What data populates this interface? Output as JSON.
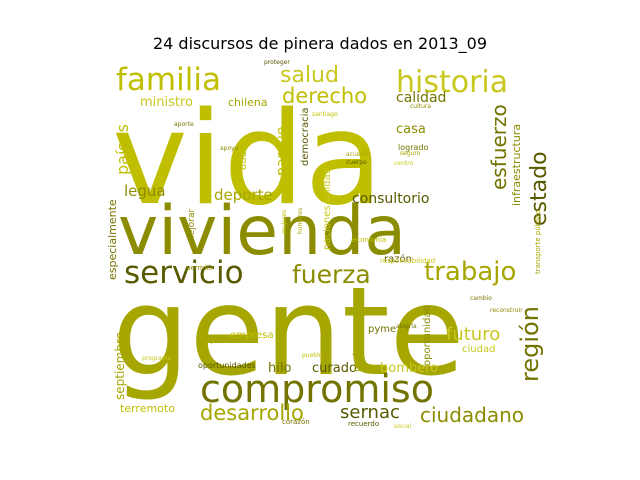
{
  "chart_data": {
    "type": "wordcloud",
    "title": "24 discursos de pinera dados en 2013_09",
    "colors": {
      "background": "#ffffff",
      "palette": [
        "#bfbf00",
        "#a6a600",
        "#8c8c00",
        "#737300",
        "#595900",
        "#c8c81e"
      ]
    },
    "words": [
      {
        "text": "vida",
        "weight": 100
      },
      {
        "text": "gente",
        "weight": 98
      },
      {
        "text": "vivienda",
        "weight": 62
      },
      {
        "text": "compromiso",
        "weight": 44
      },
      {
        "text": "servicio",
        "weight": 30
      },
      {
        "text": "historia",
        "weight": 26
      },
      {
        "text": "familia",
        "weight": 26
      },
      {
        "text": "trabajo",
        "weight": 25
      },
      {
        "text": "fuerza",
        "weight": 24
      },
      {
        "text": "región",
        "weight": 22
      },
      {
        "text": "estado",
        "weight": 22
      },
      {
        "text": "salud",
        "weight": 20
      },
      {
        "text": "derecho",
        "weight": 20
      },
      {
        "text": "desarrollo",
        "weight": 20
      },
      {
        "text": "ciudadano",
        "weight": 19
      },
      {
        "text": "esfuerzo",
        "weight": 18
      },
      {
        "text": "sernac",
        "weight": 17
      },
      {
        "text": "futuro",
        "weight": 17
      },
      {
        "text": "países",
        "weight": 16
      },
      {
        "text": "deporte",
        "weight": 15
      },
      {
        "text": "legua",
        "weight": 15
      },
      {
        "text": "calidad",
        "weight": 14
      },
      {
        "text": "consultorio",
        "weight": 13
      },
      {
        "text": "ministro",
        "weight": 12
      },
      {
        "text": "parque",
        "weight": 12
      },
      {
        "text": "septiembre",
        "weight": 12
      },
      {
        "text": "casa",
        "weight": 11
      },
      {
        "text": "hilo",
        "weight": 11
      },
      {
        "text": "curado",
        "weight": 11
      },
      {
        "text": "bombero",
        "weight": 11
      },
      {
        "text": "terremoto",
        "weight": 10
      },
      {
        "text": "chilena",
        "weight": 10
      },
      {
        "text": "infraestructura",
        "weight": 10
      },
      {
        "text": "especialmente",
        "weight": 10
      },
      {
        "text": "democracia",
        "weight": 9
      },
      {
        "text": "naciones unidas",
        "weight": 9
      },
      {
        "text": "empresa",
        "weight": 9
      },
      {
        "text": "regiones",
        "weight": 9
      },
      {
        "text": "oportunidad",
        "weight": 9
      },
      {
        "text": "pyme",
        "weight": 8
      },
      {
        "text": "razón",
        "weight": 8
      },
      {
        "text": "ciudad",
        "weight": 8
      },
      {
        "text": "duda",
        "weight": 8
      },
      {
        "text": "empleo",
        "weight": 7
      },
      {
        "text": "mejorar",
        "weight": 7
      },
      {
        "text": "logrado",
        "weight": 7
      },
      {
        "text": "oportunidades",
        "weight": 6
      },
      {
        "text": "responsabilidad",
        "weight": 6
      },
      {
        "text": "economía",
        "weight": 6
      },
      {
        "text": "transporte público",
        "weight": 6
      },
      {
        "text": "permitir",
        "weight": 6
      },
      {
        "text": "corazón",
        "weight": 6
      },
      {
        "text": "recuerdo",
        "weight": 6
      },
      {
        "text": "social",
        "weight": 6
      },
      {
        "text": "pueblo",
        "weight": 6
      },
      {
        "text": "seguro",
        "weight": 5
      },
      {
        "text": "cultura",
        "weight": 5
      },
      {
        "text": "alegría",
        "weight": 5
      },
      {
        "text": "proteger",
        "weight": 5
      },
      {
        "text": "centro",
        "weight": 5
      },
      {
        "text": "santiago",
        "weight": 5
      },
      {
        "text": "acuerdo",
        "weight": 5
      },
      {
        "text": "apoyo",
        "weight": 5
      },
      {
        "text": "aporte",
        "weight": 5
      },
      {
        "text": "cuerpo",
        "weight": 5
      },
      {
        "text": "programa",
        "weight": 5
      },
      {
        "text": "mujeres",
        "weight": 5
      },
      {
        "text": "hombres",
        "weight": 5
      },
      {
        "text": "reconstruir",
        "weight": 5
      },
      {
        "text": "cambio",
        "weight": 5
      }
    ]
  }
}
